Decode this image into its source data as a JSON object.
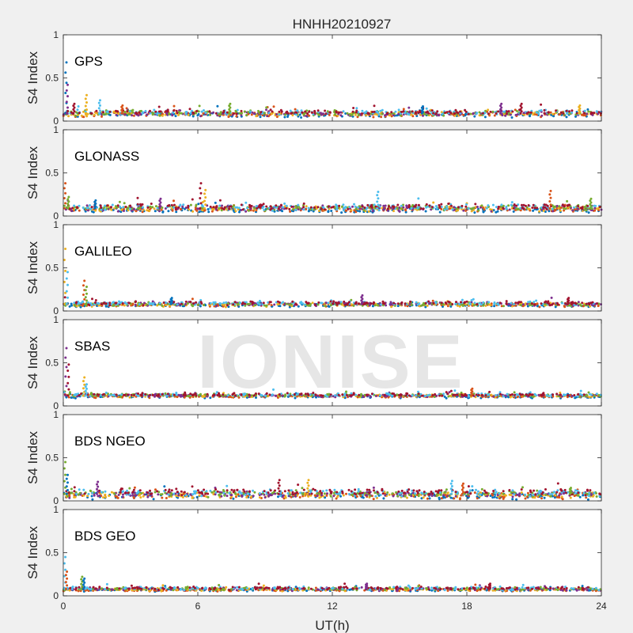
{
  "chart_data": {
    "type": "scatter",
    "title": "HNHH20210927",
    "xlabel": "UT(h)",
    "ylabel": "S4 Index",
    "xlim": [
      0,
      24
    ],
    "xticks": [
      0,
      6,
      12,
      18,
      24
    ],
    "xtick_labels": [
      "0",
      "6",
      "12",
      "18",
      "24"
    ],
    "ylim": [
      0,
      1
    ],
    "yticks": [
      0,
      0.5,
      1
    ],
    "ytick_labels": [
      "0",
      "0.5",
      "1"
    ],
    "grid": false,
    "watermark": "IONISE",
    "series_colors": [
      "#0072BD",
      "#D95319",
      "#EDB120",
      "#7E2F8E",
      "#77AC30",
      "#4DBEEE",
      "#A2142F"
    ],
    "panels": [
      {
        "label": "GPS",
        "baseline": 0.09,
        "spread": 0.03,
        "spikes": [
          [
            0.1,
            0.68
          ],
          [
            0.15,
            0.42
          ],
          [
            0.45,
            0.2
          ],
          [
            1.0,
            0.3
          ],
          [
            1.6,
            0.24
          ],
          [
            2.6,
            0.18
          ],
          [
            7.4,
            0.2
          ],
          [
            16.0,
            0.17
          ],
          [
            19.5,
            0.2
          ],
          [
            20.4,
            0.2
          ],
          [
            23.0,
            0.18
          ]
        ]
      },
      {
        "label": "GLONASS",
        "baseline": 0.09,
        "spread": 0.035,
        "spikes": [
          [
            0.05,
            0.38
          ],
          [
            0.2,
            0.22
          ],
          [
            1.4,
            0.18
          ],
          [
            4.3,
            0.2
          ],
          [
            6.1,
            0.38
          ],
          [
            6.3,
            0.3
          ],
          [
            14.0,
            0.28
          ],
          [
            21.7,
            0.29
          ],
          [
            23.5,
            0.2
          ]
        ]
      },
      {
        "label": "GALILEO",
        "baseline": 0.08,
        "spread": 0.025,
        "spikes": [
          [
            0.05,
            0.72
          ],
          [
            0.15,
            0.45
          ],
          [
            0.9,
            0.35
          ],
          [
            1.0,
            0.28
          ],
          [
            4.8,
            0.15
          ],
          [
            13.3,
            0.18
          ],
          [
            22.5,
            0.15
          ]
        ]
      },
      {
        "label": "SBAS",
        "baseline": 0.12,
        "spread": 0.02,
        "spikes": [
          [
            0.1,
            0.67
          ],
          [
            0.2,
            0.48
          ],
          [
            0.9,
            0.33
          ],
          [
            1.0,
            0.25
          ],
          [
            18.2,
            0.2
          ]
        ]
      },
      {
        "label": "BDS NGEO",
        "baseline": 0.08,
        "spread": 0.04,
        "spikes": [
          [
            0.05,
            0.45
          ],
          [
            0.15,
            0.3
          ],
          [
            1.5,
            0.22
          ],
          [
            9.6,
            0.24
          ],
          [
            10.9,
            0.24
          ],
          [
            17.3,
            0.23
          ],
          [
            17.8,
            0.2
          ],
          [
            22.6,
            0.15
          ]
        ]
      },
      {
        "label": "BDS GEO",
        "baseline": 0.08,
        "spread": 0.02,
        "spikes": [
          [
            0.05,
            0.45
          ],
          [
            0.12,
            0.28
          ],
          [
            0.8,
            0.22
          ],
          [
            0.9,
            0.2
          ],
          [
            13.5,
            0.14
          ],
          [
            19.0,
            0.14
          ]
        ]
      }
    ]
  }
}
